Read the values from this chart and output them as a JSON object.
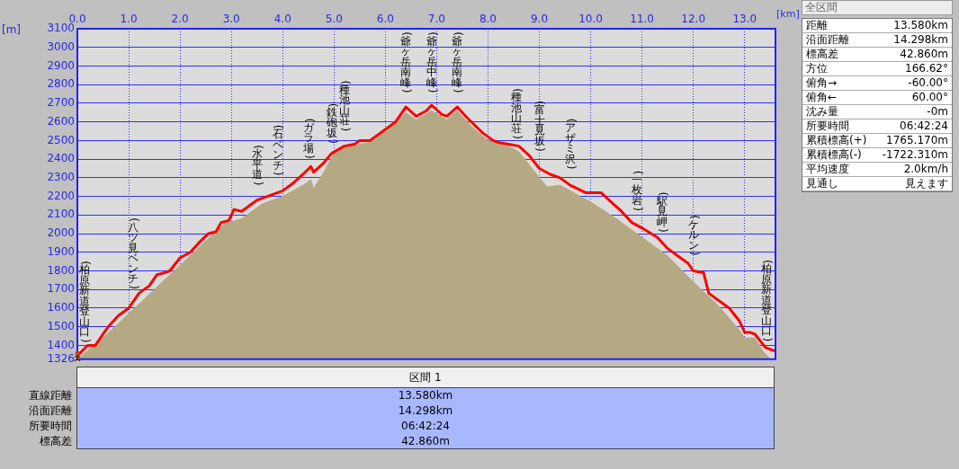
{
  "chart_data": [
    {
      "type": "area",
      "xlabel": "[km]",
      "ylabel": "[m]",
      "xlim": [
        0,
        13.6
      ],
      "ylim": [
        1326,
        3100
      ],
      "xticks": [
        {
          "value": 0,
          "label": "0.0"
        },
        {
          "value": 1,
          "label": "1.0"
        },
        {
          "value": 2,
          "label": "2.0"
        },
        {
          "value": 3,
          "label": "3.0"
        },
        {
          "value": 4,
          "label": "4.0"
        },
        {
          "value": 5,
          "label": "5.0"
        },
        {
          "value": 6,
          "label": "6.0"
        },
        {
          "value": 7,
          "label": "7.0"
        },
        {
          "value": 8,
          "label": "8.0"
        },
        {
          "value": 9,
          "label": "9.0"
        },
        {
          "value": 10,
          "label": "10.0"
        },
        {
          "value": 11,
          "label": "11.0"
        },
        {
          "value": 12,
          "label": "12.0"
        },
        {
          "value": 13,
          "label": "13.0"
        }
      ],
      "yticks": [
        1326,
        1400,
        1500,
        1600,
        1700,
        1800,
        1900,
        2000,
        2100,
        2200,
        2300,
        2400,
        2500,
        2600,
        2700,
        2800,
        2900,
        3000,
        3100
      ],
      "grid": true,
      "legend": false,
      "series": [
        {
          "type": "area",
          "color": "#b5a983",
          "x": [
            0,
            0.5,
            1.0,
            1.5,
            2.0,
            2.5,
            2.85,
            3.2,
            3.6,
            4.0,
            4.4,
            4.55,
            4.6,
            4.8,
            5.0,
            5.2,
            5.5,
            5.7,
            6.0,
            6.4,
            6.6,
            6.9,
            7.2,
            7.4,
            7.7,
            8.0,
            8.4,
            8.6,
            8.8,
            9.0,
            9.15,
            9.4,
            9.6,
            10.0,
            10.5,
            11.0,
            11.5,
            12.0,
            12.5,
            12.9,
            13.0,
            13.2,
            13.35,
            13.5
          ],
          "values": [
            1326,
            1440,
            1570,
            1700,
            1830,
            1960,
            2050,
            2080,
            2160,
            2200,
            2260,
            2290,
            2240,
            2330,
            2430,
            2460,
            2480,
            2490,
            2550,
            2650,
            2610,
            2660,
            2610,
            2660,
            2570,
            2500,
            2470,
            2440,
            2370,
            2300,
            2250,
            2260,
            2230,
            2170,
            2080,
            1980,
            1880,
            1740,
            1610,
            1480,
            1440,
            1440,
            1370,
            1326
          ]
        },
        {
          "type": "line",
          "color": "#ff0000",
          "x": [
            0,
            0.2,
            0.35,
            0.6,
            0.8,
            1.0,
            1.2,
            1.4,
            1.55,
            1.7,
            1.8,
            2.0,
            2.2,
            2.4,
            2.55,
            2.7,
            2.8,
            2.95,
            3.05,
            3.2,
            3.5,
            3.7,
            4.0,
            4.2,
            4.4,
            4.55,
            4.6,
            4.8,
            4.95,
            5.2,
            5.4,
            5.5,
            5.7,
            5.9,
            6.2,
            6.4,
            6.6,
            6.8,
            6.9,
            7.1,
            7.2,
            7.4,
            7.6,
            7.9,
            8.1,
            8.2,
            8.4,
            8.6,
            8.8,
            9.0,
            9.2,
            9.4,
            9.6,
            9.9,
            10.2,
            10.4,
            10.6,
            10.8,
            11.0,
            11.3,
            11.5,
            11.7,
            11.9,
            12.0,
            12.2,
            12.3,
            12.5,
            12.7,
            12.9,
            13.0,
            13.1,
            13.2,
            13.4,
            13.58
          ],
          "values": [
            1345,
            1400,
            1400,
            1500,
            1560,
            1600,
            1680,
            1720,
            1780,
            1790,
            1800,
            1870,
            1900,
            1960,
            2000,
            2010,
            2060,
            2070,
            2130,
            2120,
            2180,
            2200,
            2230,
            2270,
            2320,
            2360,
            2330,
            2380,
            2430,
            2470,
            2480,
            2500,
            2500,
            2540,
            2600,
            2680,
            2630,
            2660,
            2690,
            2640,
            2630,
            2680,
            2620,
            2540,
            2500,
            2490,
            2480,
            2470,
            2420,
            2350,
            2320,
            2300,
            2260,
            2220,
            2220,
            2170,
            2120,
            2060,
            2030,
            1980,
            1920,
            1880,
            1840,
            1800,
            1790,
            1680,
            1640,
            1600,
            1530,
            1470,
            1470,
            1460,
            1390,
            1370
          ]
        }
      ],
      "annotations": [
        "(柏原新道登山口)",
        "(八ツ見ベンチ)",
        "(水平道)",
        "(石ベンチ)",
        "(ガラ場)",
        "(鉄砲坂)",
        "(種池山荘)",
        "(爺ヶ岳南峰)",
        "(爺ヶ岳中峰)",
        "(爺ヶ岳南峰)",
        "(種池山荘)",
        "(富士見坂)",
        "(アザミ沢)",
        "(一枚岩)",
        "(駅見岬)",
        "(ケルン)",
        "(柏原新道登山口)"
      ]
    },
    {
      "type": "other",
      "title": "全区間",
      "categories": [
        "距離",
        "沿面距離",
        "標高差",
        "方位",
        "俯角→",
        "俯角←",
        "沈み量",
        "所要時間",
        "累積標高(+)",
        "累積標高(-)",
        "平均速度",
        "見通し"
      ],
      "value_labels": [
        "13.580km",
        "14.298km",
        "42.860m",
        "166.62°",
        "-60.00°",
        "60.00°",
        "-0m",
        "06:42:24",
        "1765.170m",
        "-1722.310m",
        "2.0km/h",
        "見えます"
      ]
    },
    {
      "type": "other",
      "title": "区間 1",
      "categories": [
        "直線距離",
        "沿面距離",
        "所要時間",
        "標高差"
      ],
      "value_labels": [
        "13.580km",
        "14.298km",
        "06:42:24",
        "42.860m"
      ]
    }
  ]
}
